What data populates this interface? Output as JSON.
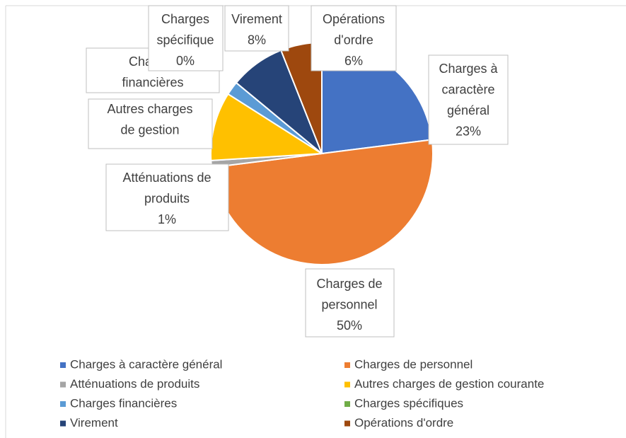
{
  "chart_data": {
    "type": "pie",
    "categories": [
      "Charges à caractère général",
      "Charges de personnel",
      "Atténuations de produits",
      "Autres charges de gestion courante",
      "Charges financières",
      "Charges spécifiques",
      "Virement",
      "Opérations d'ordre"
    ],
    "values": [
      23,
      50,
      1,
      10,
      2,
      0,
      8,
      6
    ],
    "value_labels": [
      "23%",
      "50%",
      "1%",
      null,
      null,
      "0%",
      "8%",
      "6%"
    ],
    "callouts": [
      [
        "Charges à",
        "caractère",
        "général"
      ],
      [
        "Charges de",
        "personnel"
      ],
      [
        "Atténuations de",
        "produits"
      ],
      [
        "Autres charges",
        "de gestion"
      ],
      [
        "Charges",
        "financières"
      ],
      [
        "Charges",
        "spécifique"
      ],
      [
        "Virement"
      ],
      [
        "Opérations",
        "d'ordre"
      ]
    ],
    "colors": [
      "#4472c4",
      "#ed7d31",
      "#a5a5a5",
      "#ffc000",
      "#5b9bd5",
      "#70ad47",
      "#264478",
      "#9e480e"
    ],
    "legend": "bottom"
  }
}
